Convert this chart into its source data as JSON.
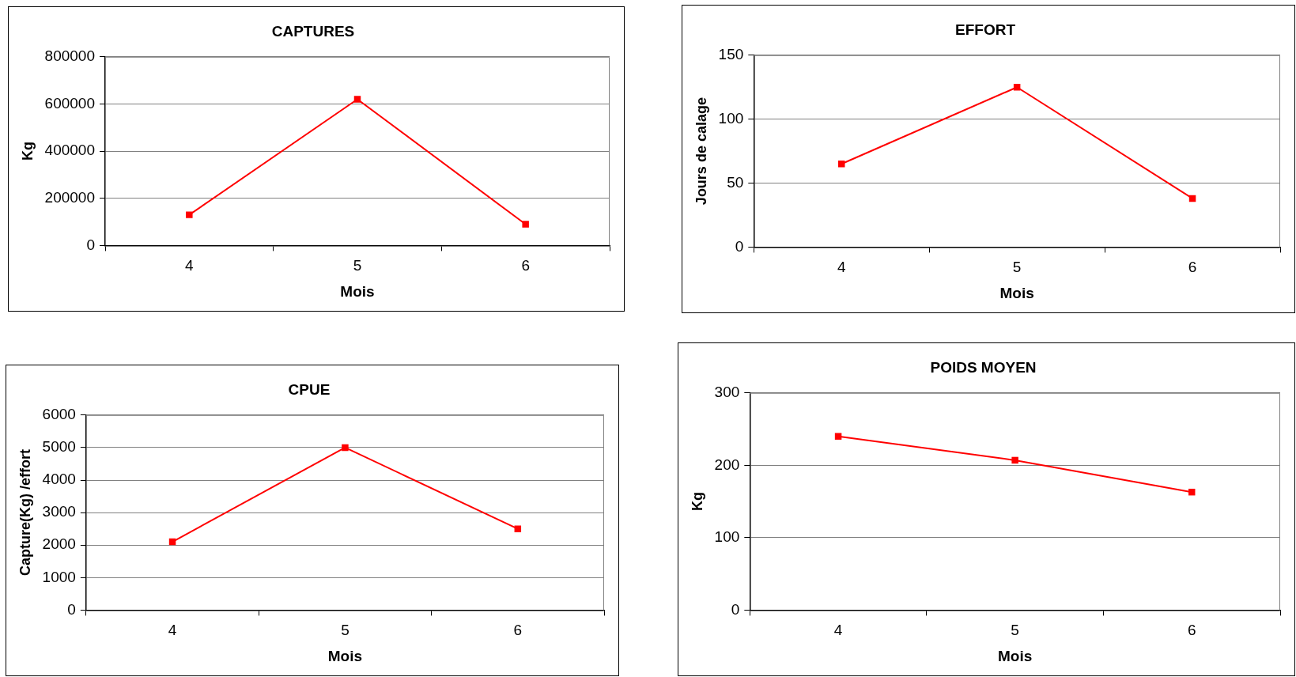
{
  "chart_data": [
    {
      "type": "line",
      "title": "CAPTURES",
      "xlabel": "Mois",
      "ylabel": "Kg",
      "categories": [
        "4",
        "5",
        "6"
      ],
      "series": [
        {
          "color": "#ff0000",
          "values": [
            130000,
            620000,
            90000
          ]
        }
      ],
      "ylim": [
        0,
        800000
      ],
      "yticks": [
        0,
        200000,
        400000,
        600000,
        800000
      ],
      "grid": "y",
      "legend": false,
      "marker": "square",
      "line_style": "solid"
    },
    {
      "type": "line",
      "title": "EFFORT",
      "xlabel": "Mois",
      "ylabel": "Jours de calage",
      "categories": [
        "4",
        "5",
        "6"
      ],
      "series": [
        {
          "color": "#ff0000",
          "values": [
            65,
            125,
            38
          ]
        }
      ],
      "ylim": [
        0,
        150
      ],
      "yticks": [
        0,
        50,
        100,
        150
      ],
      "grid": "y",
      "legend": false,
      "marker": "square",
      "line_style": "solid"
    },
    {
      "type": "line",
      "title": "CPUE",
      "xlabel": "Mois",
      "ylabel": "Capture(Kg) /effort",
      "categories": [
        "4",
        "5",
        "6"
      ],
      "series": [
        {
          "color": "#ff0000",
          "values": [
            2100,
            5000,
            2500
          ]
        }
      ],
      "ylim": [
        0,
        6000
      ],
      "yticks": [
        0,
        1000,
        2000,
        3000,
        4000,
        5000,
        6000
      ],
      "grid": "y",
      "legend": false,
      "marker": "square",
      "line_style": "solid"
    },
    {
      "type": "line",
      "title": "POIDS MOYEN",
      "xlabel": "Mois",
      "ylabel": "Kg",
      "categories": [
        "4",
        "5",
        "6"
      ],
      "series": [
        {
          "color": "#ff0000",
          "values": [
            240,
            207,
            163
          ]
        }
      ],
      "ylim": [
        0,
        300
      ],
      "yticks": [
        0,
        100,
        200,
        300
      ],
      "grid": "y",
      "legend": false,
      "marker": "square",
      "line_style": "solid"
    }
  ]
}
